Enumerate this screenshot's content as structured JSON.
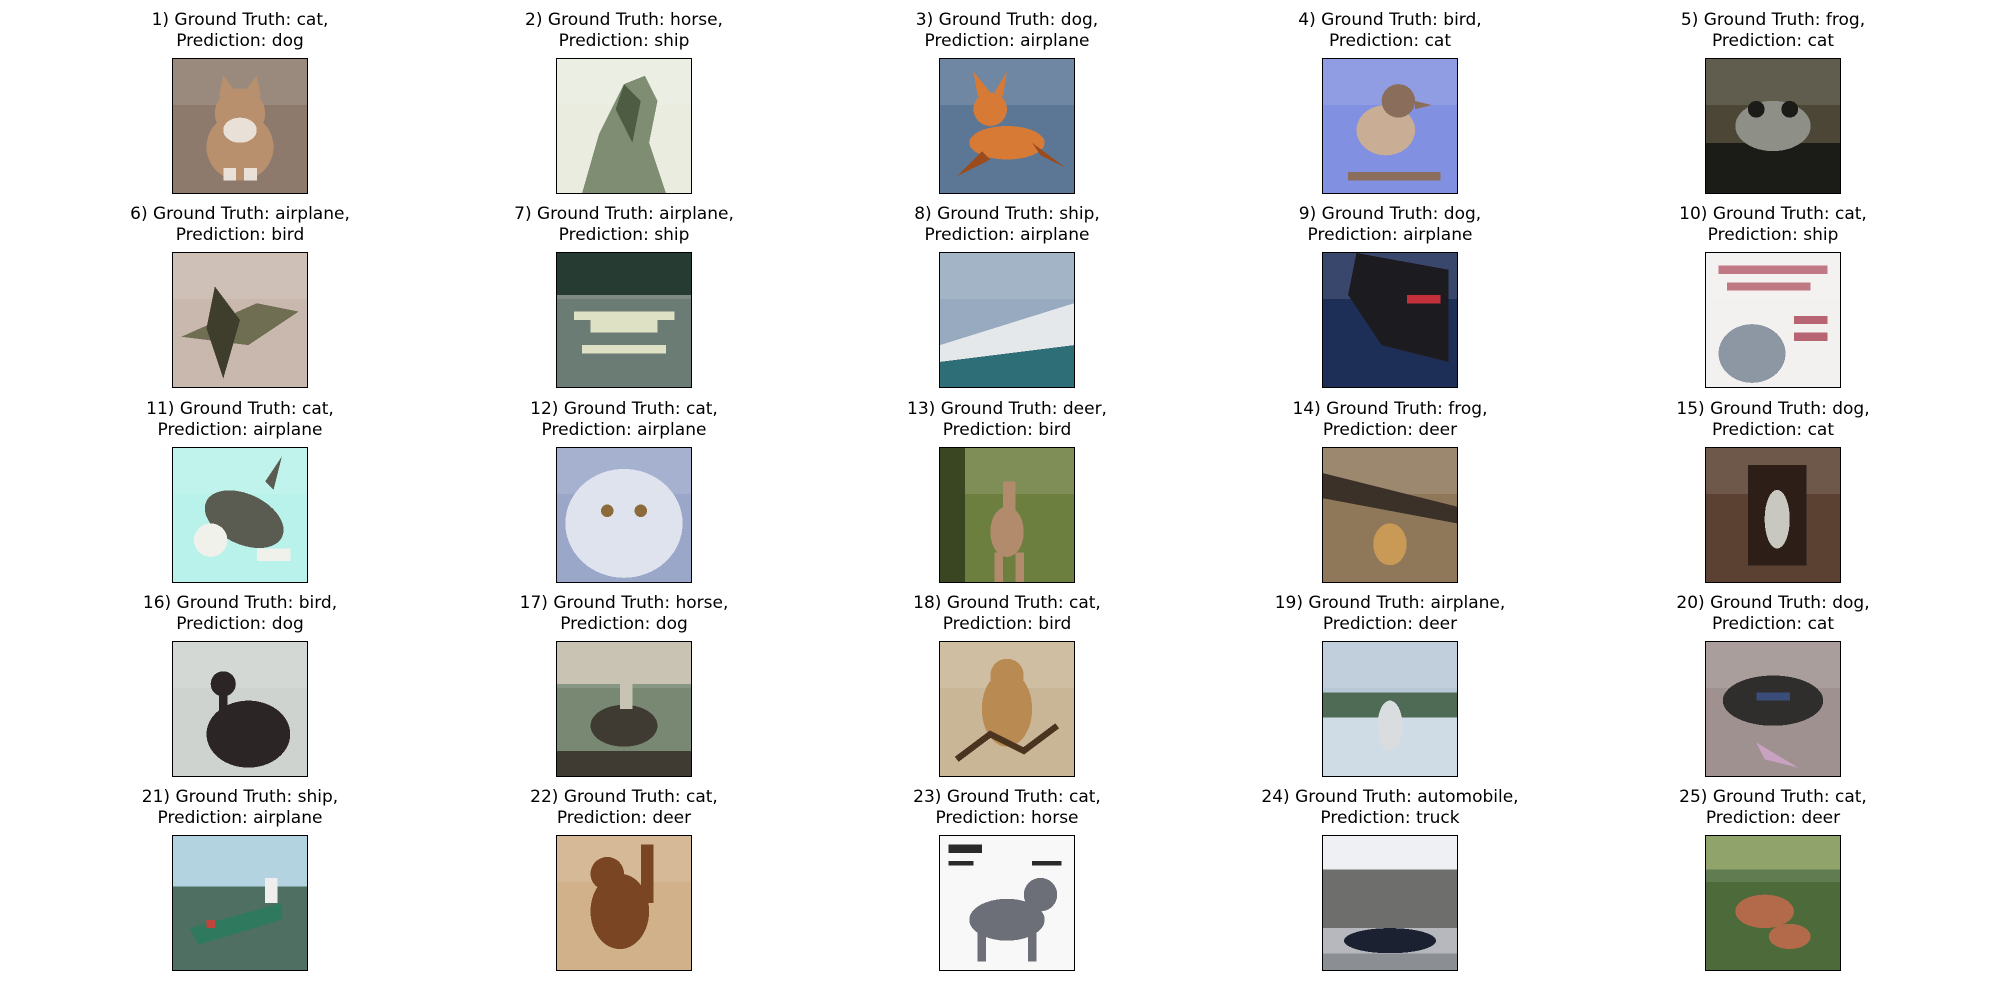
{
  "figure": {
    "samples": [
      {
        "index": "1)",
        "ground_truth": "Ground Truth: cat,",
        "prediction": "Prediction: dog",
        "thumbnail": {
          "bg": "#8d7a6c",
          "subject": "#b8906e",
          "accent": "#e9e1d7",
          "shape": "cat-sitting"
        }
      },
      {
        "index": "2)",
        "ground_truth": "Ground Truth: horse,",
        "prediction": "Prediction: ship",
        "thumbnail": {
          "bg": "#e9ecde",
          "subject": "#7f8e73",
          "accent": "#4d5c42",
          "shape": "horse-head"
        }
      },
      {
        "index": "3)",
        "ground_truth": "Ground Truth: dog,",
        "prediction": "Prediction: airplane",
        "thumbnail": {
          "bg": "#5c7796",
          "subject": "#d77a35",
          "accent": "#9b4b1c",
          "shape": "dog-leaping"
        }
      },
      {
        "index": "4)",
        "ground_truth": "Ground Truth: bird,",
        "prediction": "Prediction: cat",
        "thumbnail": {
          "bg": "#8190e0",
          "subject": "#c9ad95",
          "accent": "#8a6e5b",
          "shape": "bird-perched"
        }
      },
      {
        "index": "5)",
        "ground_truth": "Ground Truth: frog,",
        "prediction": "Prediction: cat",
        "thumbnail": {
          "bg": "#4b4636",
          "subject": "#8e8f86",
          "accent": "#1b1b18",
          "shape": "frog-dark"
        }
      },
      {
        "index": "6)",
        "ground_truth": "Ground Truth: airplane,",
        "prediction": "Prediction: bird",
        "thumbnail": {
          "bg": "#c9b8ad",
          "subject": "#6f6d52",
          "accent": "#3f3d2c",
          "shape": "plane-ground"
        }
      },
      {
        "index": "7)",
        "ground_truth": "Ground Truth: airplane,",
        "prediction": "Prediction: ship",
        "thumbnail": {
          "bg": "#6b7c74",
          "subject": "#dfe1c5",
          "accent": "#263b31",
          "shape": "seaplane"
        }
      },
      {
        "index": "8)",
        "ground_truth": "Ground Truth: ship,",
        "prediction": "Prediction: airplane",
        "thumbnail": {
          "bg": "#98aac0",
          "subject": "#e5e8ea",
          "accent": "#2e6e77",
          "shape": "cruise-ship"
        }
      },
      {
        "index": "9)",
        "ground_truth": "Ground Truth: dog,",
        "prediction": "Prediction: airplane",
        "thumbnail": {
          "bg": "#1d2e57",
          "subject": "#1c1c20",
          "accent": "#c2303c",
          "shape": "dog-black"
        }
      },
      {
        "index": "10)",
        "ground_truth": "Ground Truth: cat,",
        "prediction": "Prediction: ship",
        "thumbnail": {
          "bg": "#f3f0f0",
          "subject": "#8d96a3",
          "accent": "#9c2a3c",
          "shape": "cat-poster"
        }
      },
      {
        "index": "11)",
        "ground_truth": "Ground Truth: cat,",
        "prediction": "Prediction: airplane",
        "thumbnail": {
          "bg": "#b8f2ea",
          "subject": "#5a5c51",
          "accent": "#f1f1ec",
          "shape": "cat-jumping"
        }
      },
      {
        "index": "12)",
        "ground_truth": "Ground Truth: cat,",
        "prediction": "Prediction: airplane",
        "thumbnail": {
          "bg": "#9aa7c9",
          "subject": "#dfe3ee",
          "accent": "#8c6a3a",
          "shape": "cat-fluffy"
        }
      },
      {
        "index": "13)",
        "ground_truth": "Ground Truth: deer,",
        "prediction": "Prediction: bird",
        "thumbnail": {
          "bg": "#6d7f3f",
          "subject": "#b28a6c",
          "accent": "#3a4522",
          "shape": "deer-standing"
        }
      },
      {
        "index": "14)",
        "ground_truth": "Ground Truth: frog,",
        "prediction": "Prediction: deer",
        "thumbnail": {
          "bg": "#8f785a",
          "subject": "#c99a55",
          "accent": "#3c3128",
          "shape": "frog-road"
        }
      },
      {
        "index": "15)",
        "ground_truth": "Ground Truth: dog,",
        "prediction": "Prediction: cat",
        "thumbnail": {
          "bg": "#5b4131",
          "subject": "#c9c8c0",
          "accent": "#2d1f18",
          "shape": "dog-doorway"
        }
      },
      {
        "index": "16)",
        "ground_truth": "Ground Truth: bird,",
        "prediction": "Prediction: dog",
        "thumbnail": {
          "bg": "#cfd3cf",
          "subject": "#2b2526",
          "accent": "#7e8c84",
          "shape": "bird-vulture"
        }
      },
      {
        "index": "17)",
        "ground_truth": "Ground Truth: horse,",
        "prediction": "Prediction: dog",
        "thumbnail": {
          "bg": "#788873",
          "subject": "#3f3b33",
          "accent": "#c9c3b4",
          "shape": "horse-rider"
        }
      },
      {
        "index": "18)",
        "ground_truth": "Ground Truth: cat,",
        "prediction": "Prediction: bird",
        "thumbnail": {
          "bg": "#c9b696",
          "subject": "#b98a52",
          "accent": "#4a3420",
          "shape": "cat-rope"
        }
      },
      {
        "index": "19)",
        "ground_truth": "Ground Truth: airplane,",
        "prediction": "Prediction: deer",
        "thumbnail": {
          "bg": "#b9c8d6",
          "subject": "#d9dde0",
          "accent": "#4f6b55",
          "shape": "plane-water"
        }
      },
      {
        "index": "20)",
        "ground_truth": "Ground Truth: dog,",
        "prediction": "Prediction: cat",
        "thumbnail": {
          "bg": "#9f9190",
          "subject": "#2f2e2c",
          "accent": "#3a4d7a",
          "shape": "dog-lying"
        }
      },
      {
        "index": "21)",
        "ground_truth": "Ground Truth: ship,",
        "prediction": "Prediction: airplane",
        "thumbnail": {
          "bg": "#a7c8d8",
          "subject": "#2f7a5e",
          "accent": "#c0443c",
          "shape": "ship-river"
        }
      },
      {
        "index": "22)",
        "ground_truth": "Ground Truth: cat,",
        "prediction": "Prediction: deer",
        "thumbnail": {
          "bg": "#d1b189",
          "subject": "#7a4522",
          "accent": "#e9dfcd",
          "shape": "cat-climbing"
        }
      },
      {
        "index": "23)",
        "ground_truth": "Ground Truth: cat,",
        "prediction": "Prediction: horse",
        "thumbnail": {
          "bg": "#f8f8f8",
          "subject": "#6d6f78",
          "accent": "#2a2a2a",
          "shape": "cat-drawing"
        }
      },
      {
        "index": "24)",
        "ground_truth": "Ground Truth: automobile,",
        "prediction": "Prediction: truck",
        "thumbnail": {
          "bg": "#b6b8bd",
          "subject": "#1b2130",
          "accent": "#6e6f6c",
          "shape": "car-garage"
        }
      },
      {
        "index": "25)",
        "ground_truth": "Ground Truth: cat,",
        "prediction": "Prediction: deer",
        "thumbnail": {
          "bg": "#4d6a3b",
          "subject": "#b26a4a",
          "accent": "#8fa36a",
          "shape": "deer-grass"
        }
      }
    ]
  }
}
